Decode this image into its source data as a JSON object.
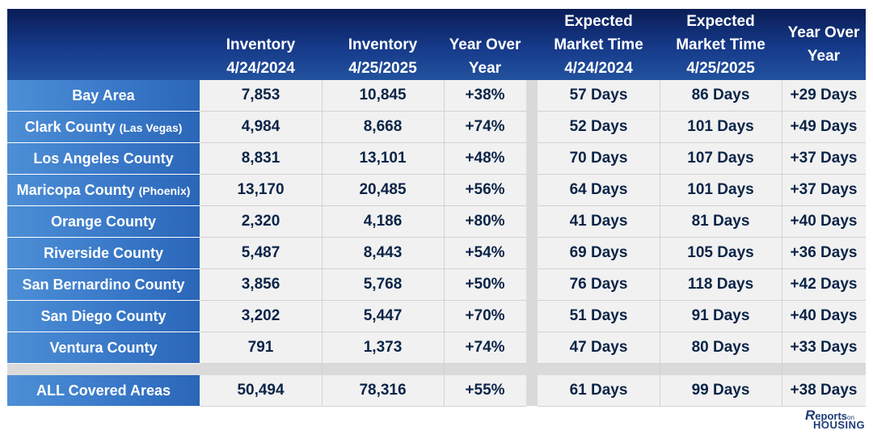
{
  "headers": [
    "",
    "Inventory\n4/24/2024",
    "Inventory\n4/25/2025",
    "Year Over\nYear",
    "Expected\nMarket Time\n4/24/2024",
    "Expected\nMarket Time\n4/25/2025",
    "Year Over\nYear"
  ],
  "rows": [
    {
      "name": "Bay Area",
      "sub": "",
      "inv2024": "7,853",
      "inv2025": "10,845",
      "inv_yoy": "+38%",
      "mt2024": "57 Days",
      "mt2025": "86 Days",
      "mt_yoy": "+29 Days"
    },
    {
      "name": "Clark County ",
      "sub": "(Las Vegas)",
      "inv2024": "4,984",
      "inv2025": "8,668",
      "inv_yoy": "+74%",
      "mt2024": "52 Days",
      "mt2025": "101 Days",
      "mt_yoy": "+49 Days"
    },
    {
      "name": "Los Angeles County",
      "sub": "",
      "inv2024": "8,831",
      "inv2025": "13,101",
      "inv_yoy": "+48%",
      "mt2024": "70 Days",
      "mt2025": "107 Days",
      "mt_yoy": "+37 Days"
    },
    {
      "name": "Maricopa County ",
      "sub": "(Phoenix)",
      "inv2024": "13,170",
      "inv2025": "20,485",
      "inv_yoy": "+56%",
      "mt2024": "64 Days",
      "mt2025": "101 Days",
      "mt_yoy": "+37 Days"
    },
    {
      "name": "Orange County",
      "sub": "",
      "inv2024": "2,320",
      "inv2025": "4,186",
      "inv_yoy": "+80%",
      "mt2024": "41 Days",
      "mt2025": "81 Days",
      "mt_yoy": "+40 Days"
    },
    {
      "name": "Riverside County",
      "sub": "",
      "inv2024": "5,487",
      "inv2025": "8,443",
      "inv_yoy": "+54%",
      "mt2024": "69 Days",
      "mt2025": "105 Days",
      "mt_yoy": "+36 Days"
    },
    {
      "name": "San Bernardino County",
      "sub": "",
      "inv2024": "3,856",
      "inv2025": "5,768",
      "inv_yoy": "+50%",
      "mt2024": "76 Days",
      "mt2025": "118 Days",
      "mt_yoy": "+42 Days"
    },
    {
      "name": "San Diego County",
      "sub": "",
      "inv2024": "3,202",
      "inv2025": "5,447",
      "inv_yoy": "+70%",
      "mt2024": "51 Days",
      "mt2025": "91 Days",
      "mt_yoy": "+40 Days"
    },
    {
      "name": "Ventura County",
      "sub": "",
      "inv2024": "791",
      "inv2025": "1,373",
      "inv_yoy": "+74%",
      "mt2024": "47 Days",
      "mt2025": "80 Days",
      "mt_yoy": "+33 Days"
    }
  ],
  "total": {
    "name": "ALL Covered Areas",
    "sub": "",
    "inv2024": "50,494",
    "inv2025": "78,316",
    "inv_yoy": "+55%",
    "mt2024": "61 Days",
    "mt2025": "99 Days",
    "mt_yoy": "+38 Days"
  },
  "logo": {
    "r": "R",
    "line1": "eports",
    "on": "on",
    "line2": "HOUSING"
  },
  "colors": {
    "header_dark": "#0a1d56",
    "header_light": "#22529e",
    "name_cell": "#3877c7",
    "cell_bg": "#f1f1f1",
    "cell_text": "#0b2447"
  }
}
